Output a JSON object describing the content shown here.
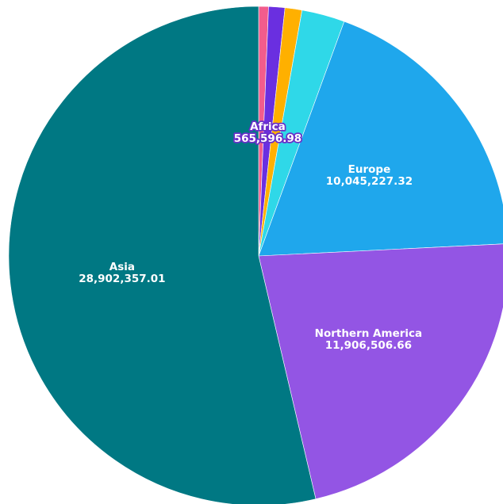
{
  "chart_data": {
    "type": "pie",
    "title": "",
    "slices": [
      {
        "label": "Asia",
        "value": 28902357.01,
        "value_text": "28,902,357.01",
        "color": "#007883",
        "show_label": true
      },
      {
        "label": "",
        "value": 340000,
        "value_text": "",
        "color": "#f25c8c",
        "show_label": false
      },
      {
        "label": "Africa",
        "value": 565596.98,
        "value_text": "565,596.98",
        "color": "#6a2fe0",
        "show_label": true,
        "outlined": true
      },
      {
        "label": "",
        "value": 590000,
        "value_text": "",
        "color": "#ffb000",
        "show_label": false
      },
      {
        "label": "",
        "value": 1500000,
        "value_text": "",
        "color": "#2fd8e8",
        "show_label": false
      },
      {
        "label": "Europe",
        "value": 10045227.32,
        "value_text": "10,045,227.32",
        "color": "#1fa7ec",
        "show_label": true
      },
      {
        "label": "Northern America",
        "value": 11906506.66,
        "value_text": "11,906,506.66",
        "color": "#9355e4",
        "show_label": true
      }
    ]
  }
}
